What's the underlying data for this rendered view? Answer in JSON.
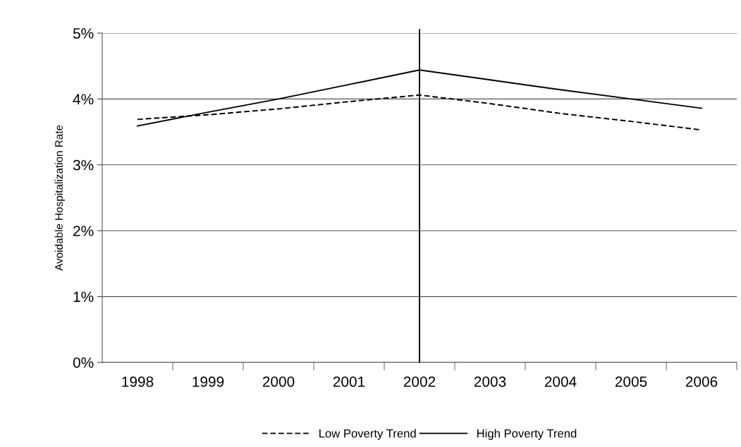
{
  "chart_data": {
    "type": "line",
    "ylabel": "Avoidable Hospitalization Rate",
    "categories": [
      "1998",
      "1999",
      "2000",
      "2001",
      "2002",
      "2003",
      "2004",
      "2005",
      "2006"
    ],
    "series": [
      {
        "name": "Low Poverty Trend",
        "color": "#000000",
        "line_style": "dashed",
        "values": [
          3.69,
          3.76,
          3.85,
          3.96,
          4.06,
          3.93,
          3.78,
          3.66,
          3.53
        ]
      },
      {
        "name": "High Poverty Trend",
        "color": "#000000",
        "line_style": "solid",
        "values": [
          3.59,
          3.8,
          4.0,
          4.22,
          4.44,
          4.29,
          4.14,
          4.0,
          3.86
        ]
      }
    ],
    "ylim": [
      0,
      5
    ],
    "yticks": [
      {
        "value": 0,
        "label": "0%"
      },
      {
        "value": 1,
        "label": "1%"
      },
      {
        "value": 2,
        "label": "2%"
      },
      {
        "value": 3,
        "label": "3%"
      },
      {
        "value": 4,
        "label": "4%"
      },
      {
        "value": 5,
        "label": "5%"
      }
    ],
    "grid": "y",
    "legend": "bottom",
    "marker": "none",
    "ref_lines": [
      {
        "axis": "x",
        "value": "2002",
        "label": null,
        "color": "#000000"
      }
    ]
  }
}
